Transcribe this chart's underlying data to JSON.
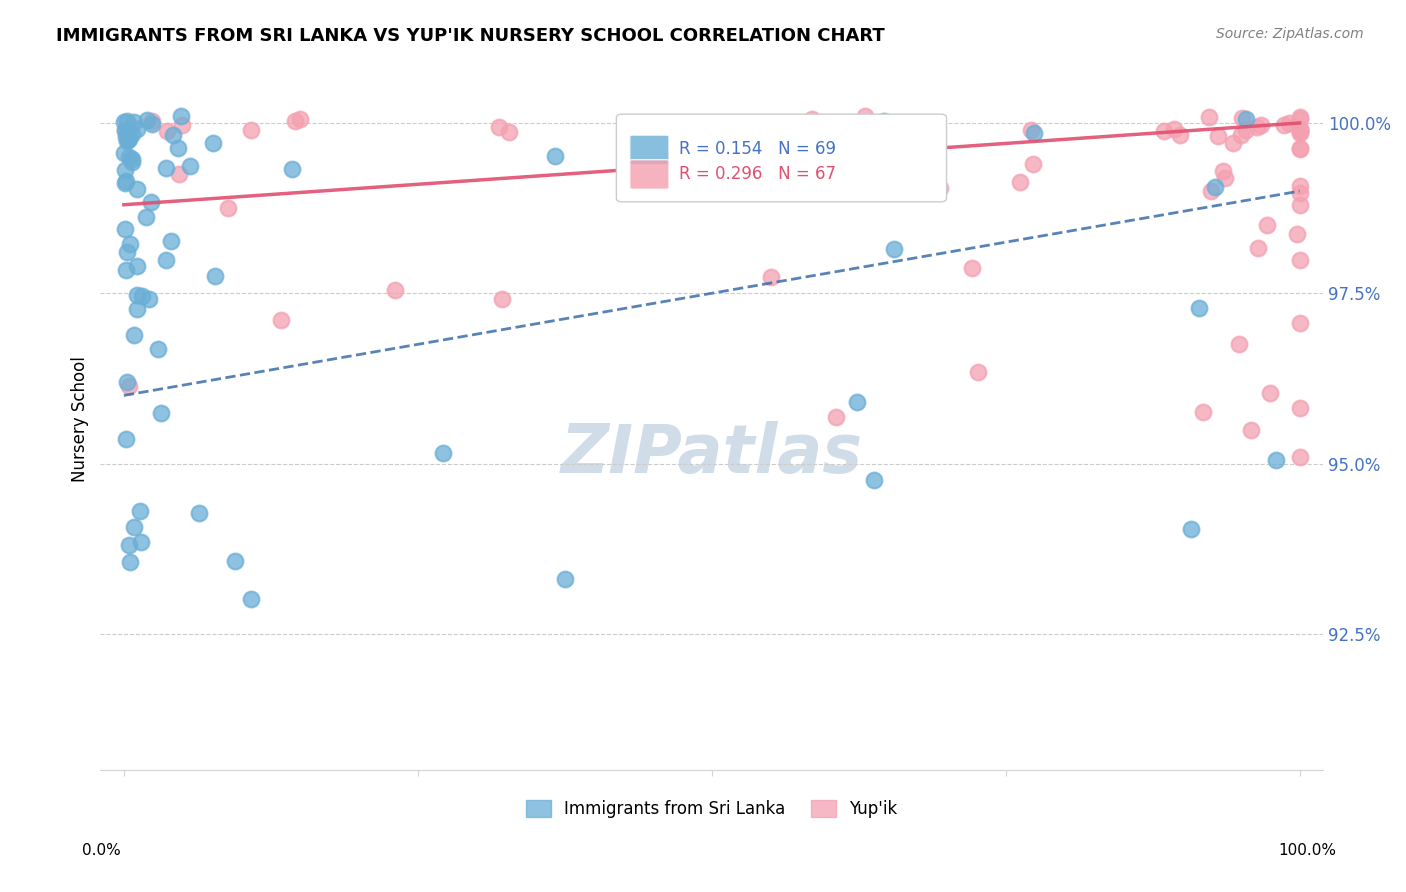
{
  "title": "IMMIGRANTS FROM SRI LANKA VS YUP'IK NURSERY SCHOOL CORRELATION CHART",
  "source": "Source: ZipAtlas.com",
  "ylabel": "Nursery School",
  "legend_label1": "Immigrants from Sri Lanka",
  "legend_label2": "Yup'ik",
  "r_blue": 0.154,
  "n_blue": 69,
  "r_pink": 0.296,
  "n_pink": 67,
  "ytick_labels": [
    "100.0%",
    "97.5%",
    "95.0%",
    "92.5%"
  ],
  "ytick_values": [
    1.0,
    0.975,
    0.95,
    0.925
  ],
  "blue_color": "#6aaed6",
  "pink_color": "#f4a0b0",
  "blue_edge_color": "#4472c4",
  "pink_edge_color": "#e05070",
  "blue_line_color": "#3a6ea8",
  "pink_line_color": "#e05070",
  "watermark_color": "#d0dce8",
  "ytick_color": "#4472c4",
  "grid_color": "#cccccc"
}
